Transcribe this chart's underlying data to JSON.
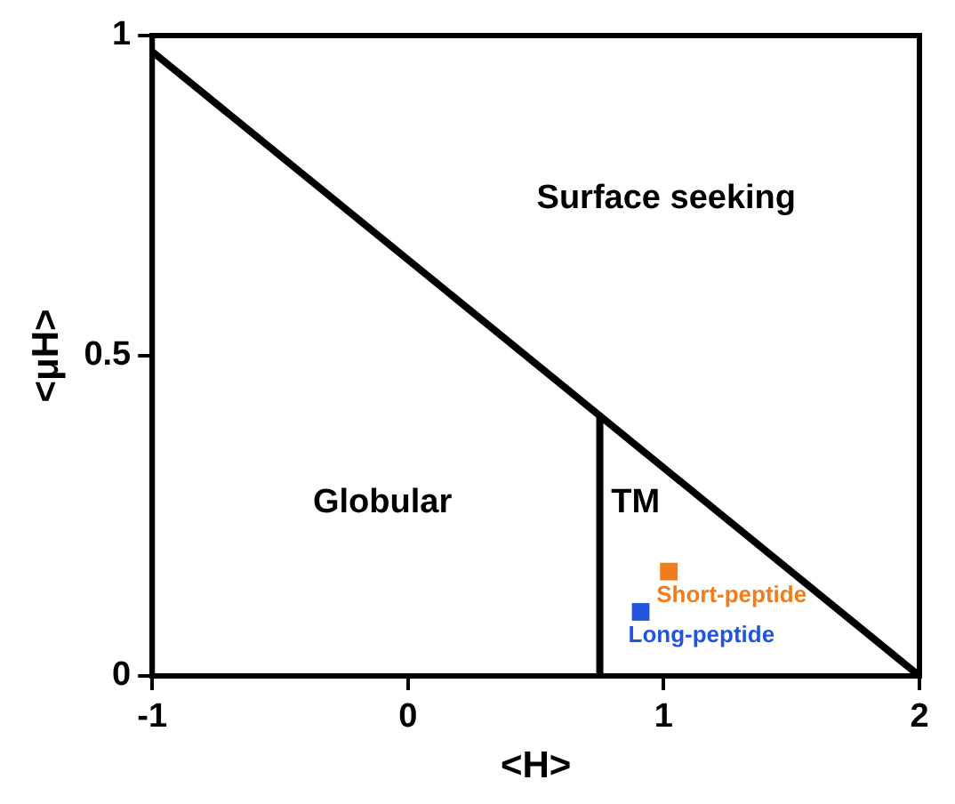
{
  "chart_data": {
    "type": "scatter",
    "xlabel": "<H>",
    "ylabel": "<μH>",
    "xlim": [
      -1,
      2
    ],
    "xticks": [
      -1,
      0,
      1,
      2
    ],
    "ylim": [
      0,
      1
    ],
    "yticks": [
      0,
      0.5,
      1
    ],
    "grid": false,
    "legend": false,
    "series": [
      {
        "type": "line",
        "color": "#000000",
        "marker": "none",
        "x": [
          -1,
          2
        ],
        "values": [
          0.975,
          0
        ]
      },
      {
        "type": "line",
        "color": "#000000",
        "marker": "none",
        "x": [
          0.75,
          0.75
        ],
        "values": [
          0,
          0.406
        ]
      },
      {
        "type": "scatter",
        "name": "Short-peptide",
        "color": "#f07c1c",
        "marker": "square",
        "x": [
          1.02
        ],
        "values": [
          0.163
        ]
      },
      {
        "type": "scatter",
        "name": "Long-peptide",
        "color": "#2255dd",
        "marker": "square",
        "x": [
          0.91
        ],
        "values": [
          0.1
        ]
      }
    ],
    "annotations": [
      "Surface seeking",
      "Globular",
      "TM"
    ]
  }
}
